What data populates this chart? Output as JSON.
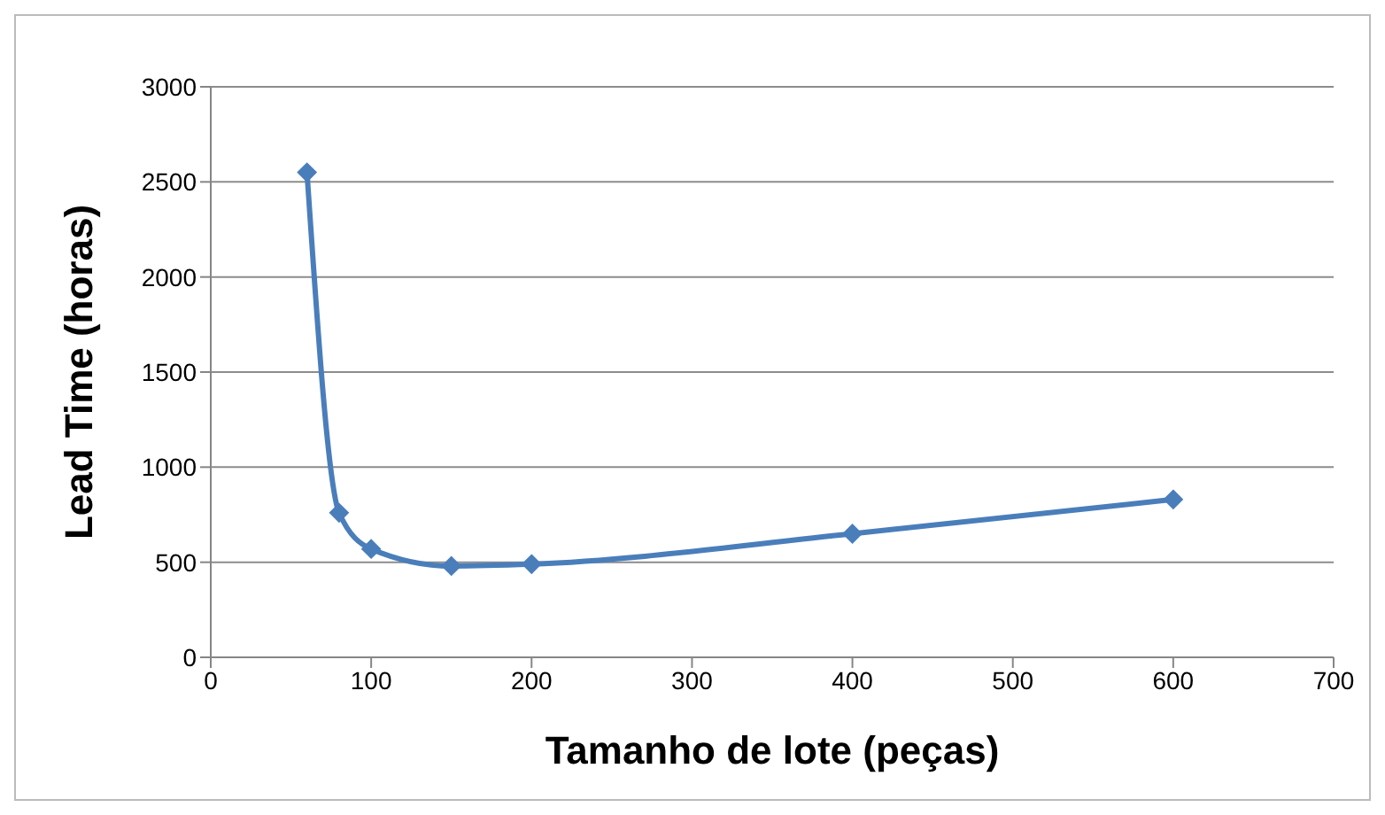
{
  "chart_data": {
    "type": "line",
    "xlabel": "Tamanho de lote (peças)",
    "ylabel": "Lead Time (horas)",
    "x": [
      60,
      80,
      100,
      150,
      200,
      400,
      600
    ],
    "series": [
      {
        "color": "#4a7ebb",
        "values": [
          2550,
          760,
          570,
          480,
          490,
          650,
          830
        ]
      }
    ],
    "xlim": [
      0,
      700
    ],
    "xticks": [
      0,
      100,
      200,
      300,
      400,
      500,
      600,
      700
    ],
    "ylim": [
      0,
      3000
    ],
    "yticks": [
      0,
      500,
      1000,
      1500,
      2000,
      2500,
      3000
    ],
    "grid": "y",
    "legend": false,
    "marker": "diamond",
    "line_style": "solid"
  }
}
